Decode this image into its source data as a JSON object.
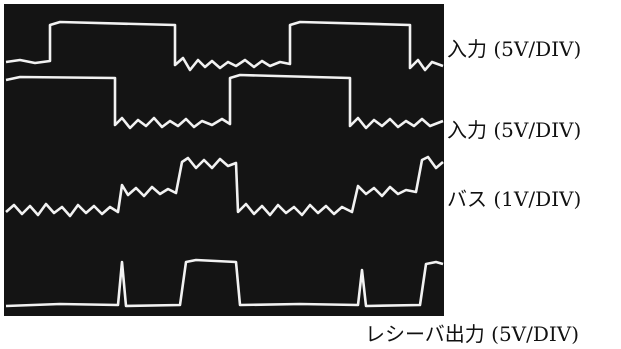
{
  "traces": [
    {
      "label": "入力 (5V/DIV)"
    },
    {
      "label": "入力 (5V/DIV)"
    },
    {
      "label": "バス (1V/DIV)"
    },
    {
      "label": "レシーバ出力 (5V/DIV)"
    }
  ]
}
